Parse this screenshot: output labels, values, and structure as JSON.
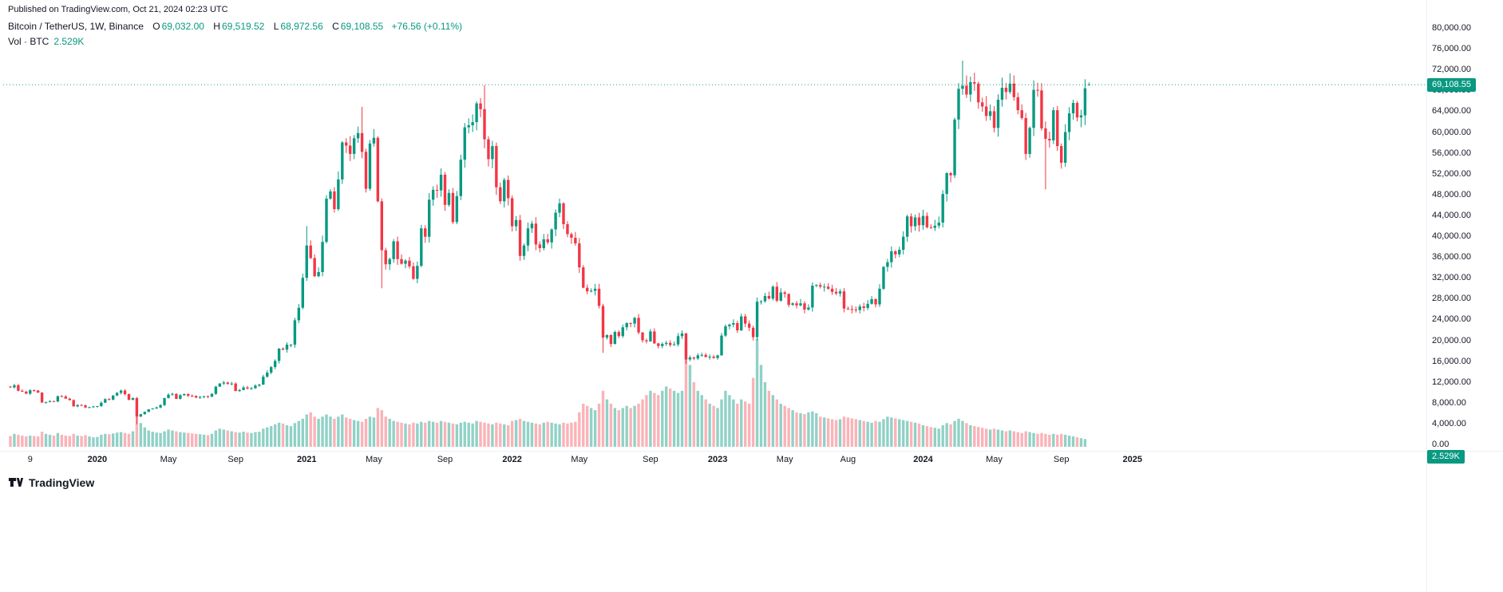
{
  "published_line": "Published on TradingView.com, Oct 21, 2024 02:23 UTC",
  "header": {
    "symbol_title": "Bitcoin / TetherUS, 1W, Binance",
    "ohlc": [
      {
        "label": "O",
        "value": "69,032.00"
      },
      {
        "label": "H",
        "value": "69,519.52"
      },
      {
        "label": "L",
        "value": "68,972.56"
      },
      {
        "label": "C",
        "value": "69,108.55"
      }
    ],
    "change": "+76.56 (+0.11%)",
    "volume_row_label": "Vol · BTC",
    "volume_row_value": "2.529K"
  },
  "axes": {
    "price_ticks": [
      "80,000.00",
      "76,000.00",
      "72,000.00",
      "68,000.00",
      "64,000.00",
      "60,000.00",
      "56,000.00",
      "52,000.00",
      "48,000.00",
      "44,000.00",
      "40,000.00",
      "36,000.00",
      "32,000.00",
      "28,000.00",
      "24,000.00",
      "20,000.00",
      "16,000.00",
      "12,000.00",
      "8,000.00",
      "4,000.00",
      "0.00"
    ],
    "time_ticks": [
      {
        "label": "9",
        "week": 5
      },
      {
        "label": "2020",
        "week": 22
      },
      {
        "label": "May",
        "week": 40
      },
      {
        "label": "Sep",
        "week": 57
      },
      {
        "label": "2021",
        "week": 75
      },
      {
        "label": "May",
        "week": 92
      },
      {
        "label": "Sep",
        "week": 110
      },
      {
        "label": "2022",
        "week": 127
      },
      {
        "label": "May",
        "week": 144
      },
      {
        "label": "Sep",
        "week": 162
      },
      {
        "label": "2023",
        "week": 179
      },
      {
        "label": "May",
        "week": 196
      },
      {
        "label": "Aug",
        "week": 212
      },
      {
        "label": "2024",
        "week": 231
      },
      {
        "label": "May",
        "week": 249
      },
      {
        "label": "Sep",
        "week": 266
      },
      {
        "label": "2025",
        "week": 284
      }
    ],
    "last_price_label": "69,108.55",
    "last_volume_label": "2.529K"
  },
  "footer": {
    "brand": "TradingView"
  },
  "colors": {
    "up": "#089981",
    "down": "#f23645",
    "vol_up": "rgba(8,153,129,0.45)",
    "vol_down": "rgba(242,54,69,0.38)",
    "accent": "#089981",
    "text": "#131722"
  },
  "chart_data": {
    "type": "candlestick",
    "title": "Bitcoin / TetherUS, 1W, Binance",
    "timeframe": "1W",
    "x_start_week": "2019-07-29",
    "x_end_label": "2025",
    "ylim": [
      0,
      80000
    ],
    "y_step": 4000,
    "grid": "off",
    "last_candle": {
      "open": 69032.0,
      "high": 69519.52,
      "low": 68972.56,
      "close": 69108.55,
      "change": 76.56,
      "change_pct": 0.11
    },
    "volume_last_kbtc": 2.529,
    "closes": [
      10960,
      11350,
      10300,
      10130,
      9750,
      10400,
      10350,
      9950,
      8050,
      8150,
      8300,
      8250,
      9250,
      9200,
      8800,
      8500,
      7300,
      7550,
      7500,
      7100,
      7150,
      7300,
      7350,
      8020,
      8700,
      8600,
      9400,
      9900,
      10350,
      9650,
      8550,
      8900,
      5350,
      5800,
      6250,
      6750,
      6900,
      7100,
      7550,
      8900,
      9550,
      9700,
      8750,
      9450,
      9650,
      9350,
      9300,
      9000,
      9100,
      9250,
      9150,
      9700,
      11100,
      11700,
      11900,
      11650,
      11700,
      10250,
      10450,
      10950,
      10750,
      10800,
      11300,
      11500,
      13000,
      13800,
      14850,
      16050,
      18400,
      18200,
      19150,
      19150,
      23850,
      26250,
      32000,
      38200,
      35800,
      32300,
      33100,
      38900,
      47200,
      48600,
      45200,
      50900,
      58000,
      57400,
      55800,
      58800,
      59800,
      56200,
      49100,
      57800,
      58900,
      46700,
      37300,
      34600,
      35600,
      39000,
      35600,
      34700,
      35300,
      34200,
      31800,
      34300,
      41500,
      39900,
      47000,
      48900,
      48800,
      51800,
      46000,
      48300,
      42700,
      47700,
      54700,
      60900,
      61300,
      61900,
      65500,
      64400,
      58600,
      54800,
      57300,
      49400,
      46700,
      50800,
      47300,
      41900,
      43100,
      36200,
      38200,
      41500,
      42400,
      38400,
      37700,
      39400,
      38800,
      41300,
      44500,
      46300,
      42300,
      40400,
      39700,
      38600,
      34000,
      30100,
      29400,
      29500,
      29900,
      26600,
      20500,
      21000,
      19300,
      21600,
      20800,
      22500,
      23300,
      23200,
      24300,
      21500,
      20000,
      19800,
      21700,
      19400,
      18900,
      19300,
      19500,
      19100,
      19200,
      20800,
      21300,
      16300,
      16700,
      16500,
      17100,
      17200,
      16800,
      16850,
      16600,
      17100,
      20900,
      22700,
      23000,
      23300,
      21900,
      24600,
      23200,
      22400,
      20600,
      27400,
      27500,
      28500,
      28000,
      30300,
      27600,
      29200,
      28900,
      26800,
      27100,
      26700,
      27100,
      25900,
      26300,
      30500,
      30600,
      30300,
      30300,
      29900,
      29300,
      29000,
      29400,
      26100,
      26000,
      25900,
      25800,
      26500,
      26200,
      27000,
      27900,
      26900,
      29900,
      34100,
      35000,
      37100,
      36500,
      37400,
      39900,
      43800,
      41900,
      43600,
      42100,
      43900,
      41700,
      41600,
      42000,
      42600,
      48100,
      52100,
      51700,
      62400,
      68300,
      68900,
      67200,
      69600,
      69300,
      65700,
      64900,
      63100,
      64000,
      60800,
      66200,
      68500,
      67700,
      69300,
      66700,
      64200,
      62700,
      55800,
      60800,
      68100,
      68000,
      60700,
      58700,
      58400,
      64200,
      57300,
      54100,
      60000,
      63600,
      65600,
      62800,
      63200,
      68400,
      69108.55
    ],
    "volumes_kbtc": [
      250,
      300,
      280,
      260,
      240,
      260,
      250,
      240,
      350,
      300,
      280,
      260,
      320,
      280,
      260,
      250,
      300,
      260,
      250,
      270,
      240,
      220,
      230,
      280,
      300,
      290,
      310,
      330,
      340,
      320,
      300,
      360,
      700,
      550,
      450,
      380,
      350,
      330,
      320,
      360,
      400,
      380,
      360,
      340,
      330,
      320,
      310,
      300,
      290,
      280,
      270,
      300,
      380,
      420,
      400,
      380,
      360,
      340,
      330,
      350,
      330,
      320,
      340,
      350,
      420,
      450,
      480,
      520,
      560,
      540,
      500,
      480,
      550,
      600,
      650,
      750,
      800,
      700,
      650,
      700,
      750,
      700,
      650,
      700,
      750,
      680,
      650,
      620,
      600,
      580,
      650,
      700,
      680,
      900,
      850,
      700,
      650,
      600,
      580,
      560,
      540,
      520,
      560,
      540,
      580,
      560,
      600,
      580,
      560,
      600,
      580,
      560,
      540,
      520,
      560,
      580,
      560,
      540,
      600,
      580,
      560,
      540,
      520,
      560,
      540,
      520,
      500,
      600,
      620,
      650,
      600,
      580,
      560,
      540,
      520,
      560,
      580,
      560,
      540,
      520,
      560,
      540,
      560,
      580,
      800,
      1000,
      950,
      900,
      850,
      1000,
      1300,
      1100,
      1000,
      900,
      850,
      900,
      950,
      900,
      950,
      1000,
      1100,
      1200,
      1300,
      1250,
      1200,
      1300,
      1400,
      1350,
      1300,
      1250,
      1300,
      2400,
      1900,
      1500,
      1300,
      1200,
      1100,
      1000,
      950,
      900,
      1100,
      1300,
      1200,
      1100,
      1000,
      1100,
      1050,
      1000,
      1600,
      2500,
      1900,
      1500,
      1300,
      1200,
      1100,
      1000,
      950,
      900,
      850,
      800,
      780,
      760,
      800,
      820,
      780,
      700,
      680,
      660,
      640,
      620,
      640,
      700,
      680,
      660,
      640,
      620,
      600,
      580,
      560,
      600,
      580,
      640,
      700,
      680,
      660,
      640,
      620,
      600,
      580,
      560,
      540,
      500,
      480,
      460,
      440,
      420,
      500,
      550,
      520,
      600,
      650,
      600,
      550,
      500,
      480,
      460,
      440,
      420,
      400,
      420,
      400,
      380,
      360,
      380,
      360,
      340,
      320,
      360,
      340,
      320,
      300,
      320,
      300,
      280,
      300,
      280,
      300,
      280,
      260,
      240,
      220,
      200,
      180,
      2.5
    ],
    "wick_overrides": {
      "32": {
        "low": 3850
      },
      "75": {
        "high": 41950
      },
      "89": {
        "high": 64850
      },
      "94": {
        "low": 30000
      },
      "120": {
        "high": 69000
      },
      "150": {
        "low": 17600
      },
      "171": {
        "low": 15500
      },
      "241": {
        "high": 73700
      },
      "262": {
        "low": 49000
      }
    }
  }
}
